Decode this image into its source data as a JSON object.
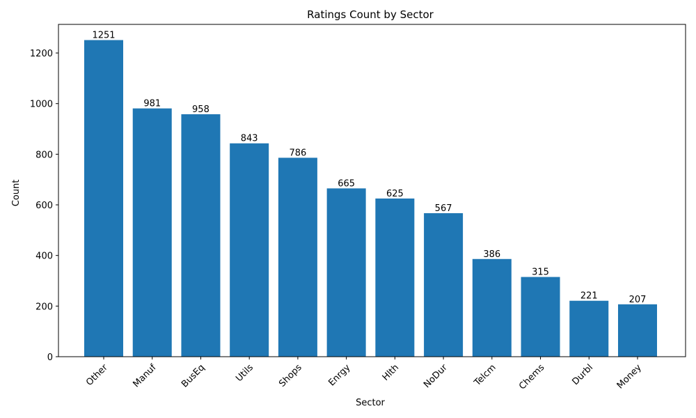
{
  "chart_data": {
    "type": "bar",
    "title": "Ratings Count by Sector",
    "xlabel": "Sector",
    "ylabel": "Count",
    "categories": [
      "Other",
      "Manuf",
      "BusEq",
      "Utils",
      "Shops",
      "Enrgy",
      "Hlth",
      "NoDur",
      "Telcm",
      "Chems",
      "Durbl",
      "Money"
    ],
    "values": [
      1251,
      981,
      958,
      843,
      786,
      665,
      625,
      567,
      386,
      315,
      221,
      207
    ],
    "ylim": [
      0,
      1313
    ],
    "yticks": [
      0,
      200,
      400,
      600,
      800,
      1000,
      1200
    ],
    "bar_color": "#1f77b4",
    "grid": false,
    "legend": "none"
  }
}
